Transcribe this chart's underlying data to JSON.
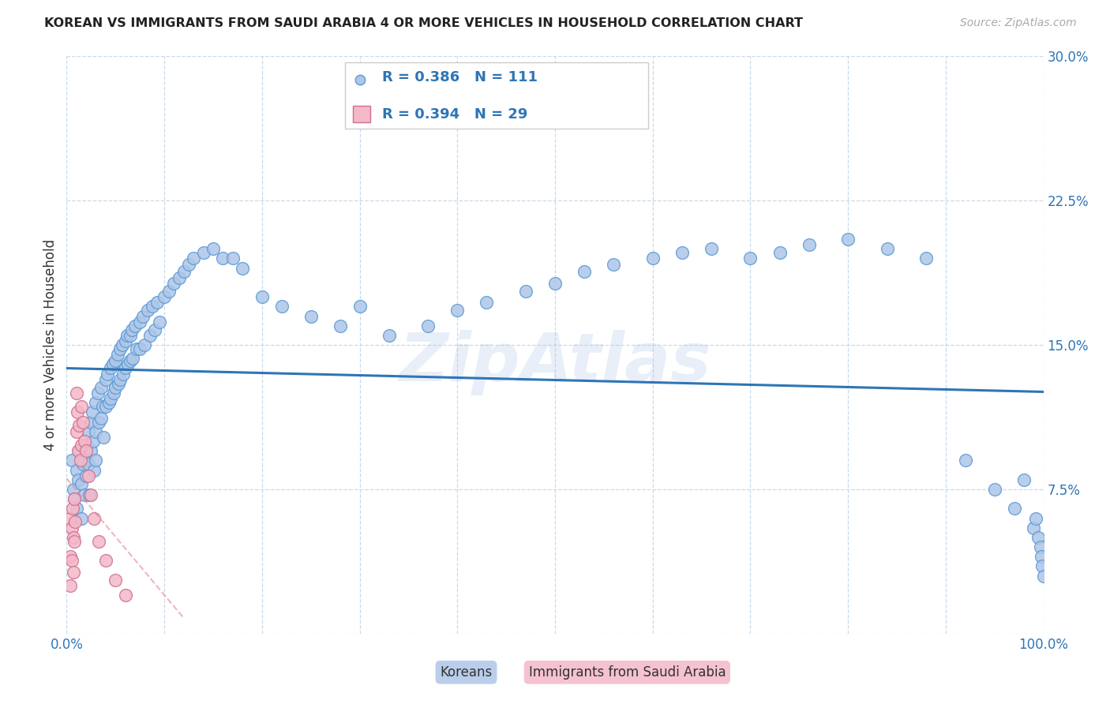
{
  "title": "KOREAN VS IMMIGRANTS FROM SAUDI ARABIA 4 OR MORE VEHICLES IN HOUSEHOLD CORRELATION CHART",
  "source": "Source: ZipAtlas.com",
  "ylabel": "4 or more Vehicles in Household",
  "xmin": 0.0,
  "xmax": 1.0,
  "ymin": 0.0,
  "ymax": 0.3,
  "yticks": [
    0.0,
    0.075,
    0.15,
    0.225,
    0.3
  ],
  "ytick_labels": [
    "",
    "7.5%",
    "15.0%",
    "22.5%",
    "30.0%"
  ],
  "xticks": [
    0.0,
    0.1,
    0.2,
    0.3,
    0.4,
    0.5,
    0.6,
    0.7,
    0.8,
    0.9,
    1.0
  ],
  "xtick_left_label": "0.0%",
  "xtick_right_label": "100.0%",
  "korean_R": 0.386,
  "korean_N": 111,
  "saudi_R": 0.394,
  "saudi_N": 29,
  "korean_color": "#aec6e8",
  "korean_edge": "#5b9bd5",
  "saudi_color": "#f4b8c8",
  "saudi_edge": "#d07090",
  "korean_line_color": "#2e75b6",
  "saudi_line_color": "#e08898",
  "watermark": "ZipAtlas",
  "legend_label_korean": "Koreans",
  "legend_label_saudi": "Immigrants from Saudi Arabia",
  "korean_x": [
    0.005,
    0.007,
    0.008,
    0.01,
    0.01,
    0.012,
    0.013,
    0.015,
    0.015,
    0.017,
    0.018,
    0.02,
    0.02,
    0.022,
    0.022,
    0.023,
    0.025,
    0.025,
    0.026,
    0.027,
    0.028,
    0.03,
    0.03,
    0.03,
    0.032,
    0.033,
    0.035,
    0.035,
    0.037,
    0.038,
    0.04,
    0.04,
    0.042,
    0.043,
    0.045,
    0.045,
    0.047,
    0.048,
    0.05,
    0.05,
    0.052,
    0.053,
    0.055,
    0.055,
    0.057,
    0.058,
    0.06,
    0.06,
    0.062,
    0.063,
    0.065,
    0.065,
    0.067,
    0.068,
    0.07,
    0.072,
    0.075,
    0.075,
    0.078,
    0.08,
    0.083,
    0.085,
    0.088,
    0.09,
    0.093,
    0.095,
    0.1,
    0.105,
    0.11,
    0.115,
    0.12,
    0.125,
    0.13,
    0.14,
    0.15,
    0.16,
    0.17,
    0.18,
    0.2,
    0.22,
    0.25,
    0.28,
    0.3,
    0.33,
    0.37,
    0.4,
    0.43,
    0.47,
    0.5,
    0.53,
    0.56,
    0.6,
    0.63,
    0.66,
    0.7,
    0.73,
    0.76,
    0.8,
    0.84,
    0.88,
    0.92,
    0.95,
    0.97,
    0.98,
    0.99,
    0.992,
    0.995,
    0.997,
    0.998,
    0.999,
    1.0
  ],
  "korean_y": [
    0.09,
    0.075,
    0.07,
    0.085,
    0.065,
    0.08,
    0.095,
    0.078,
    0.06,
    0.088,
    0.072,
    0.098,
    0.082,
    0.105,
    0.088,
    0.072,
    0.11,
    0.095,
    0.115,
    0.1,
    0.085,
    0.12,
    0.105,
    0.09,
    0.125,
    0.11,
    0.128,
    0.112,
    0.118,
    0.102,
    0.132,
    0.118,
    0.135,
    0.12,
    0.138,
    0.122,
    0.14,
    0.125,
    0.142,
    0.128,
    0.145,
    0.13,
    0.148,
    0.132,
    0.15,
    0.135,
    0.152,
    0.138,
    0.155,
    0.14,
    0.155,
    0.142,
    0.158,
    0.143,
    0.16,
    0.148,
    0.162,
    0.148,
    0.165,
    0.15,
    0.168,
    0.155,
    0.17,
    0.158,
    0.172,
    0.162,
    0.175,
    0.178,
    0.182,
    0.185,
    0.188,
    0.192,
    0.195,
    0.198,
    0.2,
    0.195,
    0.195,
    0.19,
    0.175,
    0.17,
    0.165,
    0.16,
    0.17,
    0.155,
    0.16,
    0.168,
    0.172,
    0.178,
    0.182,
    0.188,
    0.192,
    0.195,
    0.198,
    0.2,
    0.195,
    0.198,
    0.202,
    0.205,
    0.2,
    0.195,
    0.09,
    0.075,
    0.065,
    0.08,
    0.055,
    0.06,
    0.05,
    0.045,
    0.04,
    0.035,
    0.03
  ],
  "saudi_x": [
    0.003,
    0.004,
    0.004,
    0.005,
    0.005,
    0.006,
    0.007,
    0.007,
    0.008,
    0.008,
    0.009,
    0.01,
    0.01,
    0.011,
    0.012,
    0.013,
    0.014,
    0.015,
    0.015,
    0.017,
    0.018,
    0.02,
    0.022,
    0.025,
    0.028,
    0.033,
    0.04,
    0.05,
    0.06
  ],
  "saudi_y": [
    0.06,
    0.04,
    0.025,
    0.055,
    0.038,
    0.065,
    0.05,
    0.032,
    0.07,
    0.048,
    0.058,
    0.125,
    0.105,
    0.115,
    0.095,
    0.108,
    0.09,
    0.118,
    0.098,
    0.11,
    0.1,
    0.095,
    0.082,
    0.072,
    0.06,
    0.048,
    0.038,
    0.028,
    0.02
  ]
}
